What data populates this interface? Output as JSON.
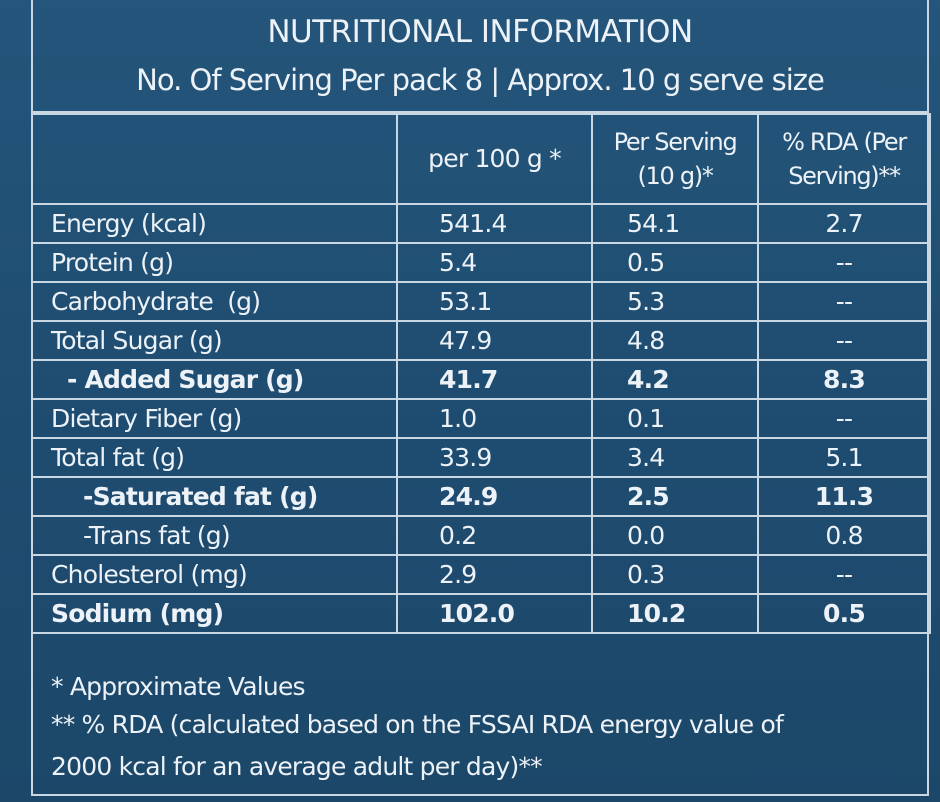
{
  "title": "NUTRITIONAL INFORMATION",
  "subtitle": "No. Of Serving Per pack 8 | Approx. 10 g serve size",
  "columns": {
    "c1": "",
    "c2": "per 100 g *",
    "c3a": "Per Serving",
    "c3b": "(10 g)*",
    "c4a": "% RDA (Per",
    "c4b": "Serving)**"
  },
  "rows": [
    {
      "label": "Energy (kcal)",
      "per100": "541.4",
      "serving": "54.1",
      "rda": "2.7"
    },
    {
      "label": "Protein (g)",
      "per100": "5.4",
      "serving": "0.5",
      "rda": "--"
    },
    {
      "label": "Carbohydrate  (g)",
      "per100": "53.1",
      "serving": "5.3",
      "rda": "--"
    },
    {
      "label": "Total Sugar (g)",
      "per100": "47.9",
      "serving": "4.8",
      "rda": "--"
    },
    {
      "label": "- Added Sugar (g)",
      "per100": "41.7",
      "serving": "4.2",
      "rda": "8.3"
    },
    {
      "label": "Dietary Fiber (g)",
      "per100": "1.0",
      "serving": "0.1",
      "rda": "--"
    },
    {
      "label": "Total fat (g)",
      "per100": "33.9",
      "serving": "3.4",
      "rda": "5.1"
    },
    {
      "label": "-Saturated fat (g)",
      "per100": "24.9",
      "serving": "2.5",
      "rda": "11.3"
    },
    {
      "label": "-Trans fat (g)",
      "per100": "0.2",
      "serving": "0.0",
      "rda": "0.8"
    },
    {
      "label": "Cholesterol (mg)",
      "per100": "2.9",
      "serving": "0.3",
      "rda": "--"
    },
    {
      "label": "Sodium (mg)",
      "per100": "102.0",
      "serving": "10.2",
      "rda": "0.5"
    }
  ],
  "footnotes": {
    "f1": "* Approximate Values",
    "f2": "** % RDA (calculated based on the FSSAI RDA energy value of",
    "f3": "2000 kcal for an average adult per day)**"
  },
  "colors": {
    "background": "#1f4e72",
    "text": "#ecf2f7",
    "rule": "#c9d7e3"
  }
}
